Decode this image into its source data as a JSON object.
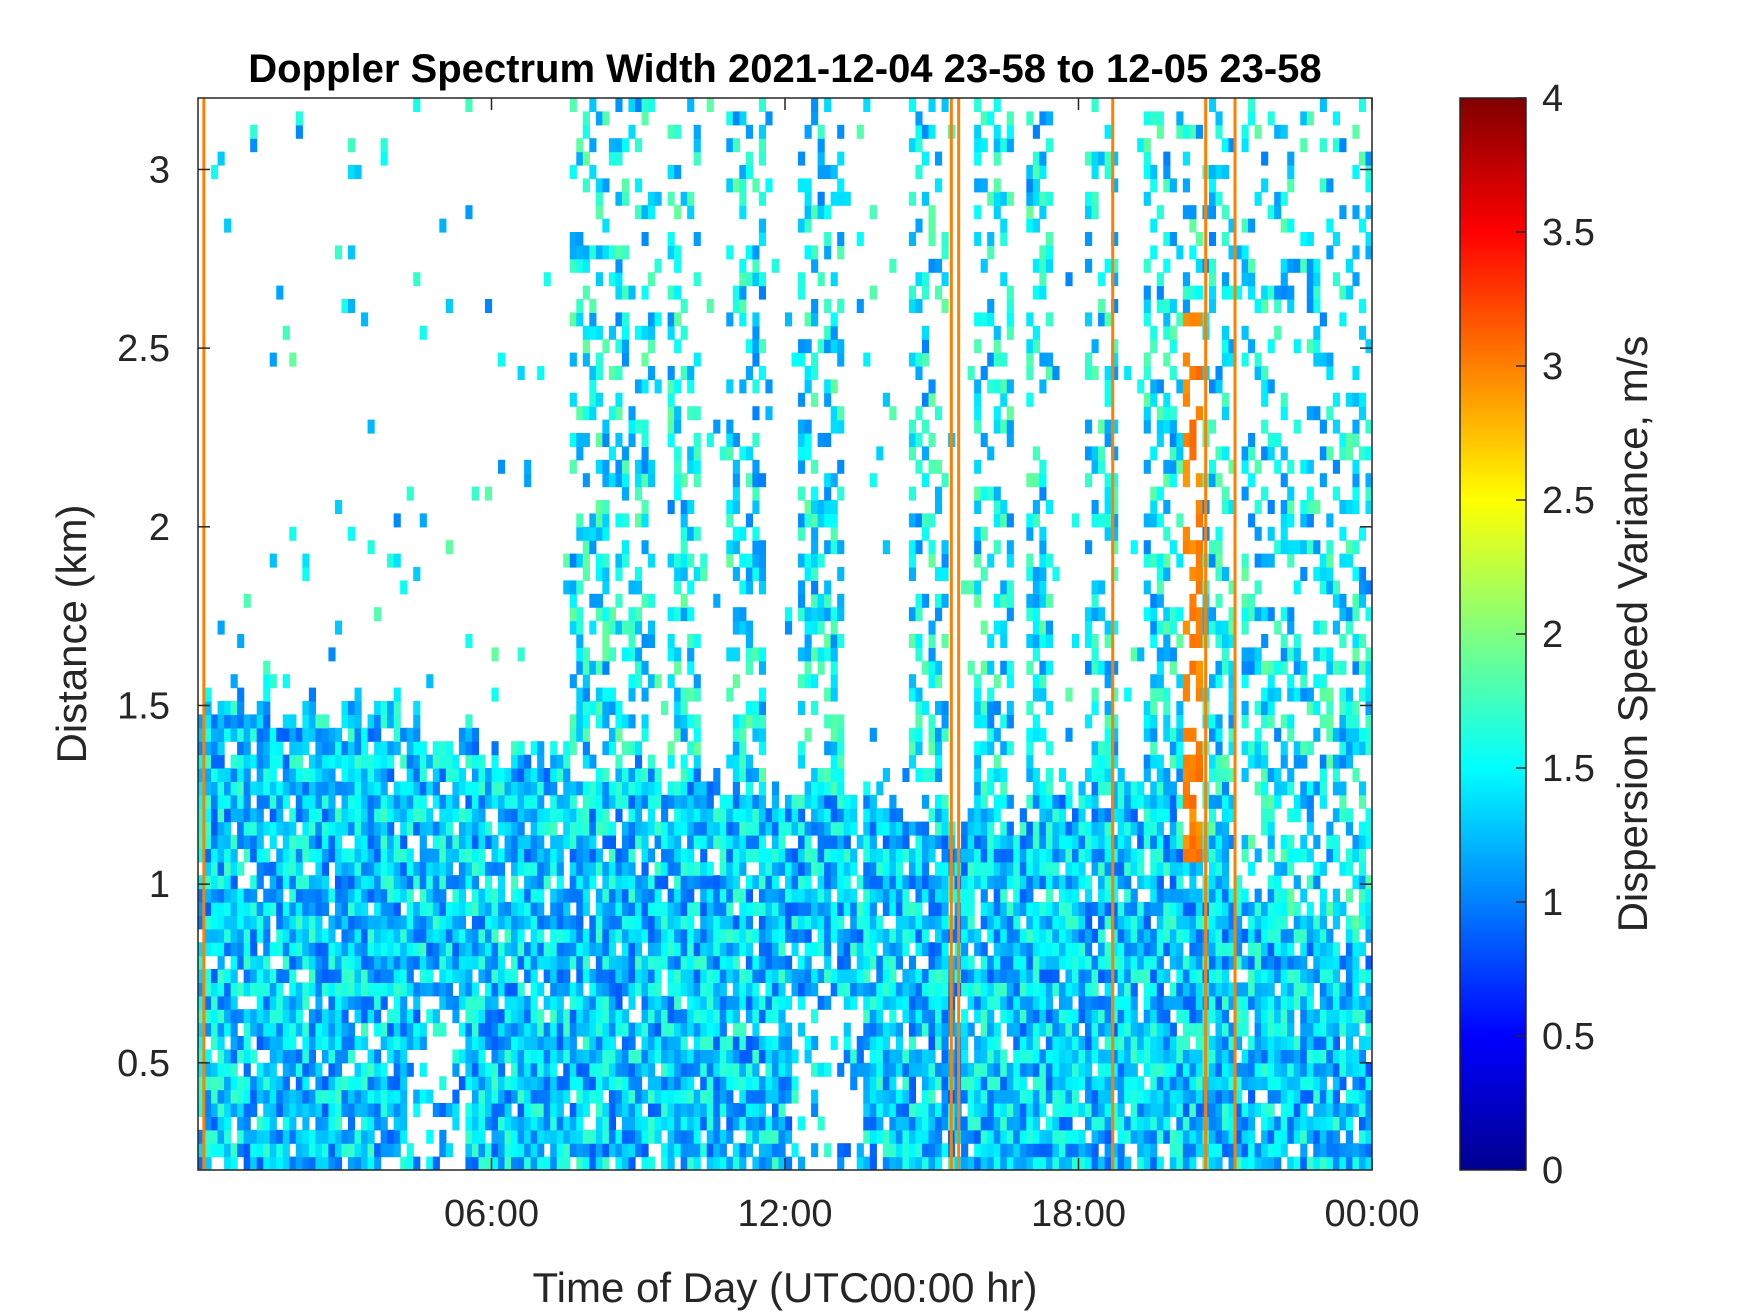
{
  "chart_data": {
    "type": "heatmap",
    "title": "Doppler Spectrum Width 2021-12-04 23-58 to 12-05 23-58",
    "xlabel": "Time of Day (UTC00:00 hr)",
    "ylabel": "Distance (km)",
    "colorbar_label": "Dispersion Speed Variance, m/s",
    "xlim_hours": [
      0,
      24
    ],
    "ylim": [
      0.2,
      3.2
    ],
    "clim": [
      0,
      4
    ],
    "colormap": "jet",
    "x_ticks": [
      {
        "value": 6,
        "label": "06:00"
      },
      {
        "value": 12,
        "label": "12:00"
      },
      {
        "value": 18,
        "label": "18:00"
      },
      {
        "value": 24,
        "label": "00:00"
      }
    ],
    "y_ticks": [
      {
        "value": 0.5,
        "label": "0.5"
      },
      {
        "value": 1,
        "label": "1"
      },
      {
        "value": 1.5,
        "label": "1.5"
      },
      {
        "value": 2,
        "label": "2"
      },
      {
        "value": 2.5,
        "label": "2.5"
      },
      {
        "value": 3,
        "label": "3"
      }
    ],
    "colorbar_ticks": [
      {
        "value": 0,
        "label": "0"
      },
      {
        "value": 0.5,
        "label": "0.5"
      },
      {
        "value": 1,
        "label": "1"
      },
      {
        "value": 1.5,
        "label": "1.5"
      },
      {
        "value": 2,
        "label": "2"
      },
      {
        "value": 2.5,
        "label": "2.5"
      },
      {
        "value": 3,
        "label": "3"
      },
      {
        "value": 3.5,
        "label": "3.5"
      },
      {
        "value": 4,
        "label": "4"
      }
    ],
    "approx_boundary_layer_top_km": [
      {
        "hour": 0,
        "top": 1.5
      },
      {
        "hour": 4,
        "top": 1.5
      },
      {
        "hour": 6,
        "top": 1.38
      },
      {
        "hour": 9,
        "top": 1.33
      },
      {
        "hour": 11,
        "top": 1.28
      },
      {
        "hour": 14,
        "top": 1.22
      },
      {
        "hour": 15.5,
        "top": 1.17
      },
      {
        "hour": 17,
        "top": 1.25
      },
      {
        "hour": 19.5,
        "top": 1.27
      },
      {
        "hour": 22,
        "top": 0.95
      },
      {
        "hour": 24,
        "top": 0.8
      }
    ],
    "orange_artifact_columns_hours": [
      0.12,
      15.4,
      15.55,
      18.7,
      20.6,
      21.2
    ],
    "orange_high_variance_patch": {
      "hour_start": 20.1,
      "hour_end": 20.6,
      "km_start": 1.05,
      "km_end": 2.6,
      "value": 3.0
    },
    "typical_value": 1.3
  }
}
